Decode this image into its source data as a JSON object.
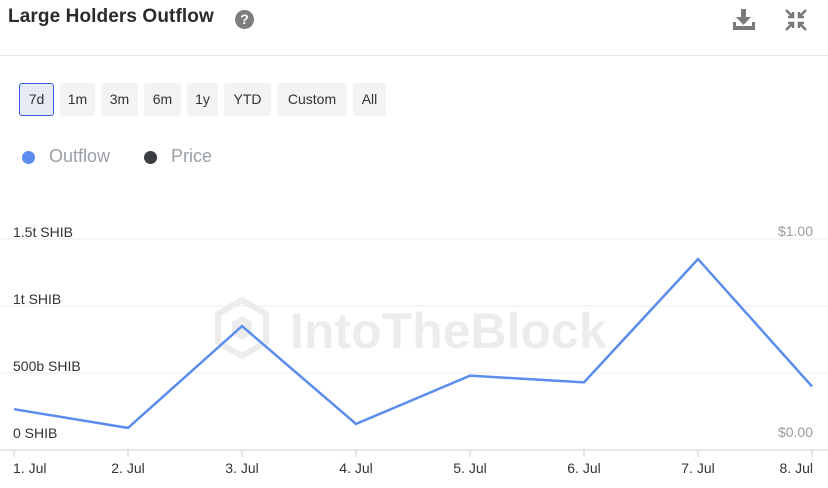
{
  "header": {
    "title": "Large Holders Outflow",
    "help_icon": "question-circle-icon",
    "download_icon": "download-icon",
    "collapse_icon": "collapse-icon"
  },
  "range_buttons": [
    {
      "label": "7d",
      "active": true
    },
    {
      "label": "1m",
      "active": false
    },
    {
      "label": "3m",
      "active": false
    },
    {
      "label": "6m",
      "active": false
    },
    {
      "label": "1y",
      "active": false
    },
    {
      "label": "YTD",
      "active": false
    },
    {
      "label": "Custom",
      "active": false
    },
    {
      "label": "All",
      "active": false
    }
  ],
  "legend": [
    {
      "label": "Outflow",
      "color": "#5b8def"
    },
    {
      "label": "Price",
      "color": "#3a3d42"
    }
  ],
  "watermark": "IntoTheBlock",
  "chart_data": {
    "type": "line",
    "x": [
      "1. Jul",
      "2. Jul",
      "3. Jul",
      "4. Jul",
      "5. Jul",
      "6. Jul",
      "7. Jul",
      "8. Jul"
    ],
    "y_left_ticks": [
      "0 SHIB",
      "500b SHIB",
      "1t SHIB",
      "1.5t SHIB"
    ],
    "y_right_ticks": [
      "$0.00",
      "$1.00"
    ],
    "ylim": [
      0,
      1.5
    ],
    "y_unit_note": "trillions of SHIB",
    "series": [
      {
        "name": "Outflow",
        "color": "#5b8def",
        "values": [
          0.23,
          0.09,
          0.85,
          0.12,
          0.48,
          0.43,
          1.35,
          0.4
        ]
      }
    ],
    "grid": true
  }
}
